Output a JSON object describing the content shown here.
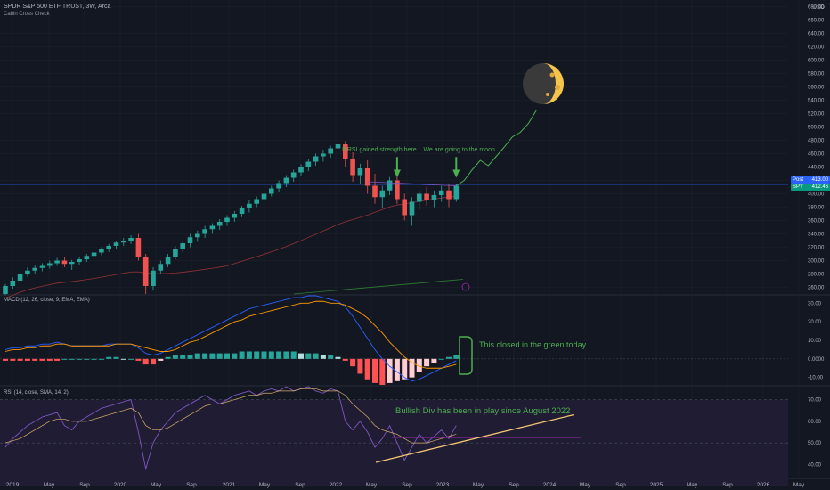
{
  "header": {
    "title": "SPDR S&P 500 ETF TRUST, 3W, Arca",
    "subtitle": "Cabin Cross Check",
    "currency": "USD"
  },
  "tags": {
    "spot_label": "Post",
    "spot_value": "413.00",
    "spy_label": "SPY",
    "spy_value": "412.46"
  },
  "panels": {
    "macd_label": "MACD (12, 26, close, 9, EMA, EMA)",
    "rsi_label": "RSI (14, close, SMA, 14, 2)"
  },
  "annotations": {
    "rsi_note": "If RSI gained strength here... We are going to the moon",
    "macd_note": "This closed in the green today",
    "div_note": "Bullish Div has been in play since August 2022"
  },
  "colors": {
    "background": "#131722",
    "grid": "#1e222d",
    "up": "#26a69a",
    "down": "#ef5350",
    "annotation": "#4caf50",
    "macd_line": "#2962ff",
    "signal_line": "#ff9800",
    "rsi_line": "#7e57c2",
    "trendline": "#f7c873",
    "rsi_level": "#9c27b0",
    "moon": "#f5c44a"
  },
  "chart_data": [
    {
      "type": "candlestick",
      "title": "SPDR S&P 500 ETF TRUST, 3W, Arca",
      "x_ticks": [
        "2019",
        "May",
        "Sep",
        "2020",
        "May",
        "Sep",
        "2021",
        "May",
        "Sep",
        "2022",
        "May",
        "Sep",
        "2023",
        "May",
        "Sep",
        "2024",
        "May",
        "Sep",
        "2025",
        "May",
        "Sep",
        "2026",
        "May"
      ],
      "y_ticks": [
        260,
        280,
        300,
        320,
        340,
        360,
        380,
        400,
        420,
        440,
        460,
        480,
        500,
        520,
        540,
        560,
        580,
        600,
        620,
        640,
        660,
        680
      ],
      "ylim": [
        250,
        690
      ],
      "candles": [
        [
          250,
          265,
          248,
          262
        ],
        [
          262,
          275,
          258,
          270
        ],
        [
          270,
          283,
          266,
          280
        ],
        [
          280,
          290,
          276,
          285
        ],
        [
          285,
          293,
          280,
          289
        ],
        [
          289,
          296,
          284,
          292
        ],
        [
          292,
          300,
          288,
          296
        ],
        [
          296,
          304,
          292,
          300
        ],
        [
          300,
          305,
          290,
          295
        ],
        [
          295,
          301,
          286,
          298
        ],
        [
          298,
          305,
          294,
          302
        ],
        [
          302,
          310,
          298,
          307
        ],
        [
          307,
          315,
          303,
          312
        ],
        [
          312,
          320,
          308,
          317
        ],
        [
          317,
          325,
          313,
          322
        ],
        [
          322,
          330,
          318,
          327
        ],
        [
          327,
          334,
          322,
          330
        ],
        [
          330,
          338,
          325,
          334
        ],
        [
          334,
          340,
          300,
          305
        ],
        [
          305,
          310,
          250,
          262
        ],
        [
          262,
          290,
          255,
          285
        ],
        [
          285,
          300,
          280,
          295
        ],
        [
          295,
          310,
          290,
          306
        ],
        [
          306,
          322,
          302,
          318
        ],
        [
          318,
          330,
          312,
          326
        ],
        [
          326,
          340,
          320,
          335
        ],
        [
          335,
          345,
          328,
          340
        ],
        [
          340,
          352,
          334,
          347
        ],
        [
          347,
          356,
          340,
          352
        ],
        [
          352,
          362,
          346,
          358
        ],
        [
          358,
          368,
          352,
          364
        ],
        [
          364,
          374,
          358,
          370
        ],
        [
          370,
          382,
          365,
          378
        ],
        [
          378,
          390,
          372,
          385
        ],
        [
          385,
          396,
          380,
          392
        ],
        [
          392,
          404,
          388,
          400
        ],
        [
          400,
          412,
          396,
          408
        ],
        [
          408,
          420,
          402,
          416
        ],
        [
          416,
          428,
          410,
          424
        ],
        [
          424,
          436,
          418,
          432
        ],
        [
          432,
          444,
          426,
          440
        ],
        [
          440,
          452,
          434,
          448
        ],
        [
          448,
          460,
          442,
          456
        ],
        [
          456,
          466,
          448,
          460
        ],
        [
          460,
          472,
          454,
          468
        ],
        [
          468,
          478,
          460,
          474
        ],
        [
          474,
          479,
          440,
          452
        ],
        [
          452,
          462,
          418,
          428
        ],
        [
          428,
          445,
          415,
          438
        ],
        [
          438,
          450,
          400,
          412
        ],
        [
          412,
          430,
          385,
          395
        ],
        [
          395,
          412,
          378,
          405
        ],
        [
          405,
          425,
          398,
          420
        ],
        [
          420,
          428,
          385,
          392
        ],
        [
          392,
          400,
          360,
          368
        ],
        [
          368,
          395,
          352,
          388
        ],
        [
          388,
          405,
          376,
          400
        ],
        [
          400,
          410,
          382,
          390
        ],
        [
          390,
          405,
          380,
          398
        ],
        [
          398,
          412,
          388,
          405
        ],
        [
          405,
          415,
          380,
          392
        ],
        [
          392,
          415,
          388,
          412
        ]
      ],
      "projection": [
        [
          412,
          420
        ],
        [
          420,
          436
        ],
        [
          436,
          450
        ],
        [
          450,
          442
        ],
        [
          442,
          456
        ],
        [
          456,
          470
        ],
        [
          470,
          485
        ],
        [
          485,
          492
        ],
        [
          492,
          505
        ],
        [
          505,
          525
        ]
      ],
      "current_price": 413.0
    },
    {
      "type": "macd",
      "label": "MACD (12, 26, close, 9, EMA, EMA)",
      "y_ticks": [
        30.0,
        20.0,
        10.0,
        0.0,
        -10.0
      ],
      "ylim": [
        -14,
        34
      ],
      "macd": [
        5,
        6,
        6,
        7,
        7,
        8,
        8,
        9,
        8,
        7,
        7,
        7,
        7,
        7,
        8,
        8,
        8,
        8,
        6,
        3,
        2,
        3,
        5,
        7,
        9,
        11,
        13,
        15,
        17,
        19,
        21,
        23,
        25,
        27,
        28,
        29,
        30,
        31,
        32,
        33,
        33,
        34,
        34,
        33,
        32,
        31,
        28,
        23,
        17,
        11,
        5,
        0,
        -4,
        -7,
        -10,
        -12,
        -11,
        -9,
        -7,
        -5,
        -3,
        -1
      ],
      "signal": [
        4,
        5,
        5,
        6,
        6,
        7,
        7,
        8,
        8,
        7,
        7,
        7,
        7,
        7,
        7,
        8,
        8,
        8,
        7,
        6,
        5,
        4,
        4,
        5,
        7,
        9,
        10,
        12,
        14,
        16,
        18,
        20,
        21,
        23,
        24,
        25,
        26,
        27,
        28,
        29,
        30,
        30,
        31,
        31,
        30,
        30,
        29,
        27,
        25,
        22,
        18,
        14,
        9,
        5,
        1,
        -2,
        -4,
        -5,
        -5,
        -5,
        -4,
        -3
      ],
      "histogram": [
        -1,
        -1,
        -1,
        -1,
        -1,
        -1,
        -1,
        -1,
        0,
        0,
        0,
        0,
        0,
        0,
        1,
        1,
        0,
        0,
        -1,
        -3,
        -3,
        -1,
        1,
        2,
        2,
        2,
        3,
        3,
        3,
        3,
        3,
        3,
        4,
        4,
        4,
        4,
        4,
        4,
        4,
        4,
        3,
        3,
        3,
        2,
        2,
        1,
        -1,
        -4,
        -8,
        -11,
        -13,
        -14,
        -13,
        -12,
        -11,
        -10,
        -7,
        -4,
        -2,
        0,
        1,
        2
      ]
    },
    {
      "type": "rsi",
      "label": "RSI (14, close, SMA, 14, 2)",
      "y_ticks": [
        70.0,
        60.0,
        50.0,
        40.0
      ],
      "ylim": [
        34,
        76
      ],
      "levels": [
        70,
        50
      ],
      "rsi": [
        48,
        52,
        55,
        58,
        60,
        62,
        63,
        64,
        58,
        56,
        60,
        62,
        64,
        66,
        67,
        68,
        69,
        70,
        55,
        38,
        50,
        56,
        60,
        64,
        66,
        68,
        70,
        72,
        70,
        68,
        70,
        72,
        73,
        74,
        72,
        74,
        75,
        74,
        76,
        74,
        75,
        76,
        74,
        73,
        75,
        74,
        60,
        56,
        60,
        55,
        48,
        52,
        58,
        50,
        42,
        48,
        54,
        50,
        53,
        56,
        52,
        58
      ],
      "rsi_ma": [
        50,
        51,
        52,
        54,
        56,
        58,
        60,
        61,
        61,
        60,
        60,
        60,
        61,
        62,
        63,
        64,
        65,
        66,
        64,
        58,
        56,
        56,
        57,
        59,
        61,
        63,
        65,
        67,
        68,
        68,
        69,
        70,
        71,
        72,
        72,
        73,
        73,
        74,
        74,
        74,
        75,
        75,
        75,
        74,
        74,
        74,
        72,
        68,
        65,
        62,
        58,
        56,
        55,
        54,
        52,
        50,
        50,
        50,
        51,
        52,
        53,
        54
      ]
    }
  ]
}
